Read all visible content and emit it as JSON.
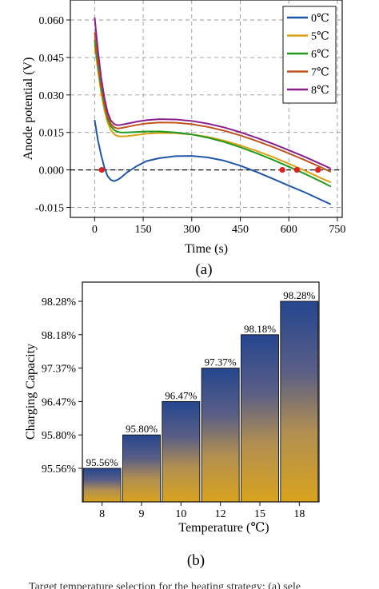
{
  "chart_data": [
    {
      "type": "line",
      "panel_label": "(a)",
      "xlabel": "Time (s)",
      "ylabel": "Anode potential (V)",
      "xlim": [
        -75,
        765
      ],
      "ylim": [
        -0.019,
        0.068
      ],
      "x_ticks": [
        0,
        150,
        300,
        450,
        600,
        750
      ],
      "x_tick_labels": [
        "0",
        "150",
        "300",
        "450",
        "600",
        "750"
      ],
      "y_ticks": [
        -0.015,
        0.0,
        0.015,
        0.03,
        0.045,
        0.06
      ],
      "y_tick_labels": [
        "-0.015",
        "0.000",
        "0.015",
        "0.030",
        "0.045",
        "0.060"
      ],
      "grid": true,
      "legend_position": "top-right",
      "reference_line_y": 0,
      "series": [
        {
          "name": "0℃",
          "color": "#2056a8",
          "x": [
            0,
            10,
            20,
            30,
            40,
            50,
            60,
            70,
            80,
            100,
            130,
            160,
            200,
            250,
            300,
            350,
            400,
            450,
            500,
            550,
            600,
            650,
            700,
            730
          ],
          "y": [
            0.02,
            0.012,
            0.006,
            0.001,
            -0.0025,
            -0.004,
            -0.0045,
            -0.004,
            -0.0032,
            -0.001,
            0.0015,
            0.0035,
            0.0047,
            0.0055,
            0.0056,
            0.005,
            0.0037,
            0.0017,
            -0.0008,
            -0.0035,
            -0.0063,
            -0.009,
            -0.012,
            -0.0138
          ]
        },
        {
          "name": "5℃",
          "color": "#d9a016",
          "x": [
            0,
            10,
            20,
            30,
            40,
            50,
            60,
            70,
            80,
            100,
            130,
            160,
            200,
            250,
            300,
            350,
            400,
            450,
            500,
            550,
            600,
            650,
            700,
            730
          ],
          "y": [
            0.05,
            0.04,
            0.031,
            0.024,
            0.019,
            0.016,
            0.0143,
            0.0136,
            0.0134,
            0.0135,
            0.014,
            0.0145,
            0.0148,
            0.0147,
            0.0142,
            0.0132,
            0.0117,
            0.0098,
            0.0076,
            0.0052,
            0.0025,
            -0.0003,
            -0.0033,
            -0.005
          ]
        },
        {
          "name": "6℃",
          "color": "#1f9a1f",
          "x": [
            0,
            10,
            20,
            30,
            40,
            50,
            60,
            70,
            80,
            100,
            130,
            160,
            200,
            250,
            300,
            350,
            400,
            450,
            500,
            550,
            600,
            650,
            700,
            730
          ],
          "y": [
            0.052,
            0.042,
            0.033,
            0.026,
            0.0205,
            0.0175,
            0.016,
            0.0153,
            0.015,
            0.015,
            0.0152,
            0.0154,
            0.0154,
            0.015,
            0.0142,
            0.0129,
            0.0112,
            0.0091,
            0.0067,
            0.0041,
            0.0013,
            -0.0016,
            -0.0047,
            -0.0067
          ]
        },
        {
          "name": "7℃",
          "color": "#c0541f",
          "x": [
            0,
            10,
            20,
            30,
            40,
            50,
            60,
            70,
            80,
            100,
            130,
            160,
            200,
            250,
            300,
            350,
            400,
            450,
            500,
            550,
            600,
            650,
            700,
            730
          ],
          "y": [
            0.055,
            0.044,
            0.035,
            0.027,
            0.0215,
            0.0185,
            0.0171,
            0.0166,
            0.0167,
            0.0172,
            0.018,
            0.0186,
            0.019,
            0.0189,
            0.0183,
            0.0172,
            0.0157,
            0.0138,
            0.0116,
            0.0092,
            0.0066,
            0.0039,
            0.001,
            -0.0008
          ]
        },
        {
          "name": "8℃",
          "color": "#8a1f8e",
          "x": [
            0,
            10,
            20,
            30,
            40,
            50,
            60,
            70,
            80,
            100,
            130,
            160,
            200,
            250,
            300,
            350,
            400,
            450,
            500,
            550,
            600,
            650,
            700,
            730
          ],
          "y": [
            0.061,
            0.048,
            0.037,
            0.029,
            0.023,
            0.0198,
            0.0184,
            0.0179,
            0.018,
            0.0185,
            0.0193,
            0.0199,
            0.0203,
            0.0202,
            0.0196,
            0.0185,
            0.017,
            0.0151,
            0.0129,
            0.0105,
            0.0079,
            0.0052,
            0.0023,
            0.0005
          ]
        }
      ],
      "markers": {
        "color": "#e0201a",
        "x": [
          22,
          580,
          625,
          690
        ],
        "y": [
          0,
          0,
          0,
          0
        ]
      }
    },
    {
      "type": "bar",
      "panel_label": "(b)",
      "xlabel": "Temperature (℃)",
      "ylabel": "Charging Capacity",
      "categories": [
        "8",
        "9",
        "10",
        "12",
        "15",
        "18"
      ],
      "values": [
        95.56,
        95.8,
        96.47,
        97.37,
        98.18,
        98.28
      ],
      "data_labels": [
        "95.56%",
        "95.80%",
        "96.47%",
        "97.37%",
        "98.18%",
        "98.28%"
      ],
      "y_tick_labels": [
        "95.56%",
        "95.80%",
        "96.47%",
        "97.37%",
        "98.18%",
        "98.28%"
      ],
      "bar_gradient": {
        "top": "#25468f",
        "bottom": "#d9a31d"
      }
    }
  ],
  "footer": {
    "caption_fragment": "Target temperature selection for the heating strategy: (a) sele"
  }
}
